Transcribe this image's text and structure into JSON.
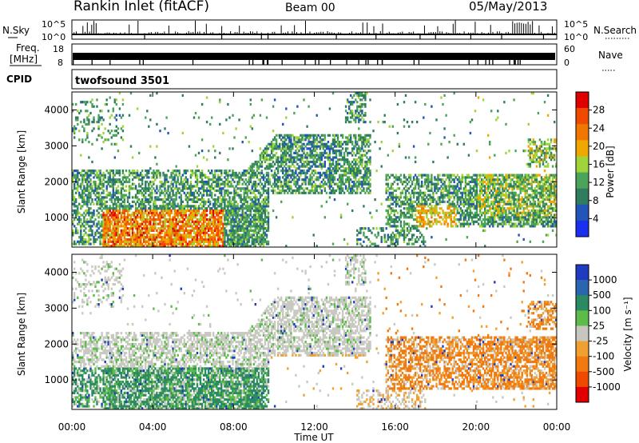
{
  "header": {
    "title": "Rankin Inlet (fitACF)",
    "beam": "Beam 00",
    "date": "05/May/2013"
  },
  "top_panels": {
    "nsky_label": "N.Sky",
    "nsky_ticks": [
      "10^5",
      "10^0"
    ],
    "nsearch_label": "N.Search",
    "nsearch_ticks": [
      "10^5",
      "10^0"
    ],
    "freq_label_1": "Freq.",
    "freq_label_2": "[MHz]",
    "freq_ticks": [
      "18",
      "8"
    ],
    "nave_label": "Nave",
    "nave_ticks": [
      "60",
      "0"
    ],
    "cpid_label": "CPID",
    "cpid_value": "twofsound 3501"
  },
  "colors": {
    "power": [
      "#1a2ff0",
      "#2255b8",
      "#2f7d5e",
      "#4ca45a",
      "#9fd53a",
      "#f0a800",
      "#f07800",
      "#f04a00",
      "#e00000"
    ],
    "velocity": [
      "#1f3bc0",
      "#2a66b0",
      "#2c8a62",
      "#5dbb4a",
      "#c7c7c0",
      "#f0a030",
      "#f07a10",
      "#f04a00",
      "#e00000"
    ],
    "gray": "#c9c9c2"
  },
  "chart_data": [
    {
      "type": "heatmap",
      "name": "power",
      "xlabel": "Time UT",
      "ylabel": "Slant Range [km]",
      "x_ticks": [
        "00:00",
        "04:00",
        "08:00",
        "12:00",
        "16:00",
        "20:00",
        "00:00"
      ],
      "xlim_hours": [
        0,
        24
      ],
      "y_ticks": [
        1000,
        2000,
        3000,
        4000
      ],
      "ylim": [
        180,
        4500
      ],
      "colorbar_label": "Power [dB]",
      "colorbar_ticks": [
        4,
        8,
        12,
        16,
        20,
        24,
        28
      ],
      "colorbar_range": [
        0,
        32
      ]
    },
    {
      "type": "heatmap",
      "name": "velocity",
      "xlabel": "Time UT",
      "ylabel": "Slant Range [km]",
      "x_ticks": [
        "00:00",
        "04:00",
        "08:00",
        "12:00",
        "16:00",
        "20:00",
        "00:00"
      ],
      "xlim_hours": [
        0,
        24
      ],
      "y_ticks": [
        1000,
        2000,
        3000,
        4000
      ],
      "ylim": [
        180,
        4500
      ],
      "colorbar_label": "Velocity [m s⁻¹]",
      "colorbar_ticks": [
        1000,
        500,
        100,
        25,
        -25,
        -100,
        -500,
        -1000
      ]
    }
  ]
}
